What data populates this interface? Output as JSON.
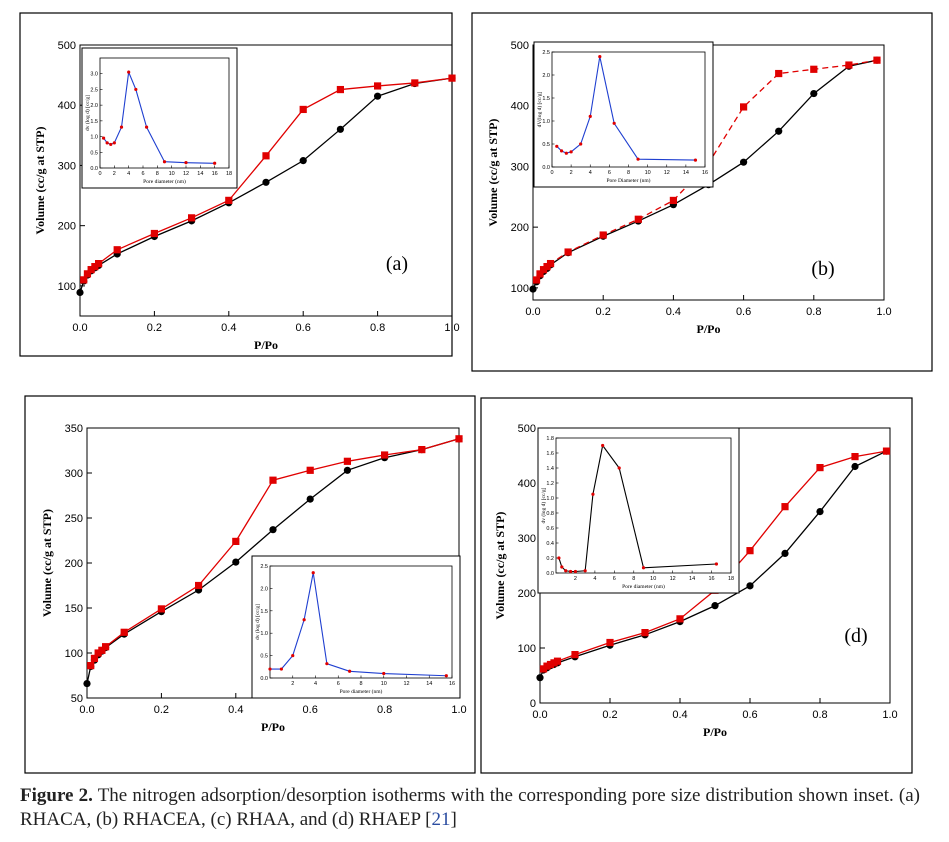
{
  "caption": {
    "figure_label": "Figure 2.",
    "text": " The nitrogen adsorption/desorption isotherms with the corresponding pore size distribution shown inset. (a) RHACA, (b) RHACEA, (c) RHAA, and (d) RHAEP [",
    "ref": "21",
    "end": "]"
  },
  "colors": {
    "adsorption": "#000000",
    "desorption": "#e00000",
    "inset_line_blue": "#1f3fd0",
    "inset_line_black": "#000000",
    "inset_marker": "#e00000"
  },
  "chart_data": [
    {
      "type": "line",
      "panel_label": "(a)",
      "xlabel": "P/Po",
      "ylabel": "Volume  (cc/g at STP)",
      "xlim": [
        0,
        1.0
      ],
      "ylim": [
        50,
        500
      ],
      "xticks": [
        "0.0",
        "0.2",
        "0.4",
        "0.6",
        "0.8",
        "1.0"
      ],
      "yticks": [
        "100",
        "200",
        "300",
        "400",
        "500"
      ],
      "series": [
        {
          "role": "adsorption",
          "marker": "circle",
          "x": [
            0,
            0.01,
            0.02,
            0.03,
            0.04,
            0.05,
            0.1,
            0.2,
            0.3,
            0.4,
            0.5,
            0.6,
            0.7,
            0.8,
            0.9,
            1.0
          ],
          "y": [
            89,
            108,
            118,
            125,
            130,
            134,
            153,
            182,
            208,
            238,
            272,
            308,
            360,
            415,
            436,
            445
          ]
        },
        {
          "role": "desorption",
          "marker": "square",
          "dashed": false,
          "x": [
            0.01,
            0.02,
            0.03,
            0.04,
            0.05,
            0.1,
            0.2,
            0.3,
            0.4,
            0.5,
            0.6,
            0.7,
            0.8,
            0.9,
            1.0
          ],
          "y": [
            110,
            120,
            127,
            132,
            137,
            160,
            187,
            213,
            242,
            316,
            393,
            426,
            432,
            437,
            445
          ]
        }
      ],
      "inset": {
        "xlabel": "Pore diameter (nm)",
        "ylabel": "dv (log d) [cc/g]",
        "xlim": [
          0,
          18
        ],
        "ylim": [
          0,
          3.5
        ],
        "xticks": [
          "0",
          "2",
          "4",
          "6",
          "8",
          "10",
          "12",
          "14",
          "16",
          "18"
        ],
        "yticks": [
          "0.0",
          "0.5",
          "1.0",
          "1.5",
          "2.0",
          "2.5",
          "3.0"
        ],
        "line_color": "#1f3fd0",
        "x": [
          0.5,
          1,
          1.5,
          2,
          3,
          4,
          5,
          6.5,
          9,
          12,
          16
        ],
        "y": [
          0.95,
          0.8,
          0.75,
          0.8,
          1.3,
          3.05,
          2.5,
          1.3,
          0.2,
          0.17,
          0.15
        ]
      }
    },
    {
      "type": "line",
      "panel_label": "(b)",
      "xlabel": "P/Po",
      "ylabel": "Volume  (cc/g at STP)",
      "xlim": [
        0,
        1.0
      ],
      "ylim": [
        80,
        500
      ],
      "xticks": [
        "0.0",
        "0.2",
        "0.4",
        "0.6",
        "0.8",
        "1.0"
      ],
      "yticks": [
        "100",
        "200",
        "300",
        "400",
        "500"
      ],
      "series": [
        {
          "role": "adsorption",
          "marker": "circle",
          "x": [
            0,
            0.01,
            0.02,
            0.03,
            0.04,
            0.05,
            0.1,
            0.2,
            0.3,
            0.4,
            0.5,
            0.6,
            0.7,
            0.8,
            0.9,
            0.98
          ],
          "y": [
            98,
            110,
            120,
            127,
            132,
            138,
            158,
            185,
            210,
            237,
            270,
            307,
            358,
            420,
            465,
            475
          ]
        },
        {
          "role": "desorption",
          "marker": "square",
          "dashed": true,
          "x": [
            0.01,
            0.02,
            0.03,
            0.04,
            0.05,
            0.1,
            0.2,
            0.3,
            0.4,
            0.5,
            0.6,
            0.7,
            0.8,
            0.9,
            0.98
          ],
          "y": [
            113,
            123,
            130,
            135,
            140,
            159,
            187,
            213,
            244,
            305,
            398,
            453,
            460,
            467,
            475
          ]
        }
      ],
      "inset": {
        "xlabel": "Pore Diameter (nm)",
        "ylabel": "dV(log d) [cc/g]",
        "xlim": [
          0,
          16
        ],
        "ylim": [
          0,
          2.5
        ],
        "xticks": [
          "0",
          "2",
          "4",
          "6",
          "8",
          "10",
          "12",
          "14",
          "16"
        ],
        "yticks": [
          "0.0",
          "0.5",
          "1.0",
          "1.5",
          "2.0",
          "2.5"
        ],
        "line_color": "#1f3fd0",
        "x": [
          0.5,
          1,
          1.5,
          2,
          3,
          4,
          5,
          6.5,
          9,
          15
        ],
        "y": [
          0.45,
          0.35,
          0.3,
          0.33,
          0.5,
          1.1,
          2.4,
          0.95,
          0.17,
          0.15
        ]
      }
    },
    {
      "type": "line",
      "panel_label": "(c)",
      "xlabel": "P/Po",
      "ylabel": "Volume  (cc/g at STP)",
      "xlim": [
        0,
        1.0
      ],
      "ylim": [
        50,
        350
      ],
      "xticks": [
        "0.0",
        "0.2",
        "0.4",
        "0.6",
        "0.8",
        "1.0"
      ],
      "yticks": [
        "50",
        "100",
        "150",
        "200",
        "250",
        "300",
        "350"
      ],
      "series": [
        {
          "role": "adsorption",
          "marker": "circle",
          "x": [
            0,
            0.01,
            0.02,
            0.03,
            0.04,
            0.05,
            0.1,
            0.2,
            0.3,
            0.4,
            0.5,
            0.6,
            0.7,
            0.8,
            0.9,
            1.0
          ],
          "y": [
            66,
            85,
            92,
            98,
            102,
            106,
            121,
            146,
            170,
            201,
            237,
            271,
            303,
            317,
            326,
            338
          ]
        },
        {
          "role": "desorption",
          "marker": "square",
          "dashed": false,
          "x": [
            0.01,
            0.02,
            0.03,
            0.04,
            0.05,
            0.1,
            0.2,
            0.3,
            0.4,
            0.5,
            0.6,
            0.7,
            0.8,
            0.9,
            1.0
          ],
          "y": [
            86,
            94,
            100,
            103,
            107,
            123,
            149,
            175,
            224,
            292,
            303,
            313,
            320,
            326,
            338
          ]
        }
      ],
      "inset": {
        "xlabel": "Pore diameter (nm)",
        "ylabel": "dv (log d) [cc/g]",
        "xlim": [
          0,
          16
        ],
        "ylim": [
          0,
          2.5
        ],
        "xticks": [
          "2",
          "4",
          "6",
          "8",
          "10",
          "12",
          "14",
          "16"
        ],
        "yticks": [
          "0.0",
          "0.5",
          "1.0",
          "1.5",
          "2.0",
          "2.5"
        ],
        "line_color": "#1f3fd0",
        "x": [
          0,
          1,
          2,
          3,
          3.8,
          5,
          7,
          10,
          15.5
        ],
        "y": [
          0.2,
          0.2,
          0.5,
          1.3,
          2.35,
          0.32,
          0.15,
          0.1,
          0.05
        ]
      }
    },
    {
      "type": "line",
      "panel_label": "(d)",
      "xlabel": "P/Po",
      "ylabel": "Volume  (cc/g at STP)",
      "xlim": [
        0,
        1.0
      ],
      "ylim": [
        0,
        500
      ],
      "xticks": [
        "0.0",
        "0.2",
        "0.4",
        "0.6",
        "0.8",
        "1.0"
      ],
      "yticks": [
        "0",
        "100",
        "200",
        "300",
        "400",
        "500"
      ],
      "series": [
        {
          "role": "adsorption",
          "marker": "circle",
          "x": [
            0,
            0.01,
            0.02,
            0.03,
            0.04,
            0.05,
            0.1,
            0.2,
            0.3,
            0.4,
            0.5,
            0.6,
            0.7,
            0.8,
            0.9,
            0.99
          ],
          "y": [
            46,
            60,
            64,
            68,
            70,
            73,
            84,
            105,
            124,
            148,
            177,
            213,
            272,
            348,
            430,
            458
          ]
        },
        {
          "role": "desorption",
          "marker": "square",
          "dashed": false,
          "x": [
            0.01,
            0.02,
            0.03,
            0.04,
            0.05,
            0.1,
            0.2,
            0.3,
            0.4,
            0.5,
            0.6,
            0.7,
            0.8,
            0.9,
            0.99
          ],
          "y": [
            62,
            67,
            70,
            73,
            76,
            88,
            110,
            128,
            153,
            205,
            277,
            357,
            428,
            448,
            458
          ]
        }
      ],
      "inset": {
        "xlabel": "Pore diameter (nm)",
        "ylabel": "dv (log d) [cc/g]",
        "xlim": [
          0,
          18
        ],
        "ylim": [
          0,
          1.8
        ],
        "xticks": [
          "2",
          "4",
          "6",
          "8",
          "10",
          "12",
          "14",
          "16",
          "18"
        ],
        "yticks": [
          "0.0",
          "0.2",
          "0.4",
          "0.6",
          "0.8",
          "1.0",
          "1.2",
          "1.4",
          "1.6",
          "1.8"
        ],
        "line_color": "#000000",
        "x": [
          0.3,
          0.6,
          1,
          1.5,
          2,
          3,
          3.8,
          4.8,
          6.5,
          9,
          16.5
        ],
        "y": [
          0.2,
          0.08,
          0.03,
          0.02,
          0.02,
          0.03,
          1.05,
          1.7,
          1.4,
          0.07,
          0.12
        ]
      }
    }
  ]
}
